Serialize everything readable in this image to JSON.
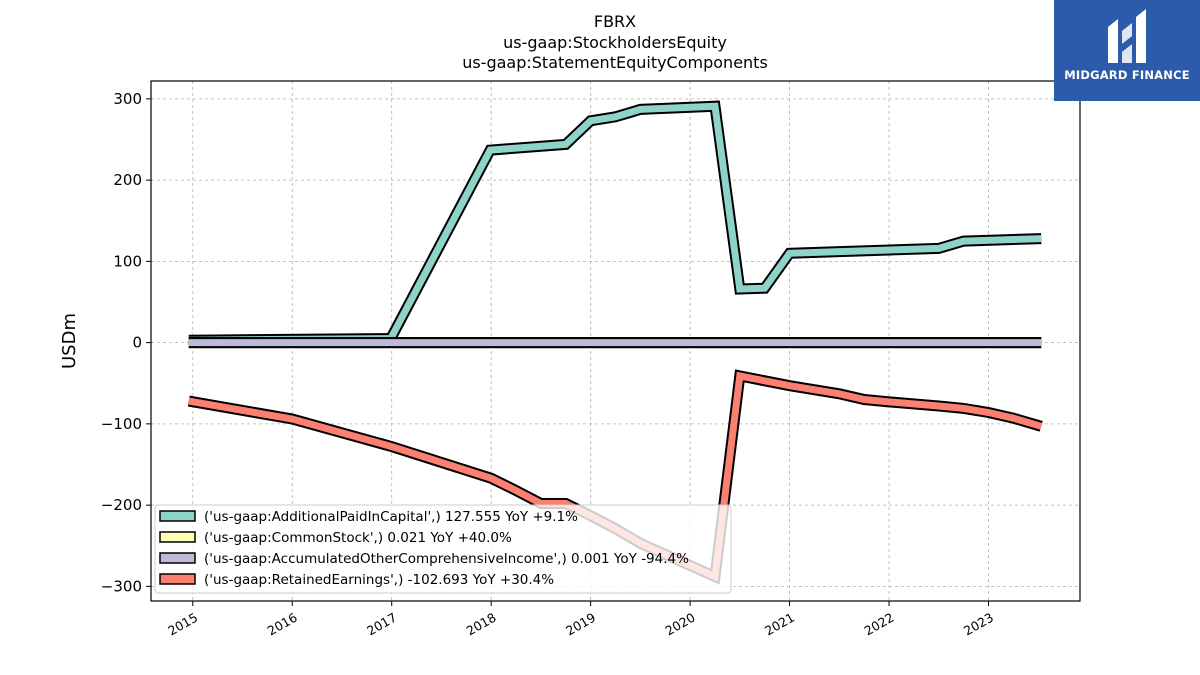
{
  "brand": {
    "logo_text": "MIDGARD FINANCE",
    "color": "#2d5bab"
  },
  "chart_data": {
    "type": "line",
    "title_lines": [
      "FBRX",
      "us-gaap:StockholdersEquity",
      "us-gaap:StatementEquityComponents"
    ],
    "xlabel": "",
    "ylabel": "USDm",
    "xlim": [
      2014.58,
      2023.92
    ],
    "ylim": [
      -318,
      322
    ],
    "x_ticks": [
      2015,
      2016,
      2017,
      2018,
      2019,
      2020,
      2021,
      2022,
      2023
    ],
    "x_tick_labels": [
      "2015",
      "2016",
      "2017",
      "2018",
      "2019",
      "2020",
      "2021",
      "2022",
      "2023"
    ],
    "y_ticks": [
      -300,
      -200,
      -100,
      0,
      100,
      200,
      300
    ],
    "y_tick_labels": [
      "−300",
      "−200",
      "−100",
      "0",
      "100",
      "200",
      "300"
    ],
    "grid": true,
    "legend_position": "lower-left",
    "series": [
      {
        "name": "('us-gaap:AdditionalPaidInCapital',) 127.555 YoY +9.1%",
        "color": "#8dd3c7",
        "x": [
          2014.96,
          2016.99,
          2017.99,
          2018.75,
          2019.0,
          2019.25,
          2019.5,
          2020.25,
          2020.5,
          2020.75,
          2021.0,
          2021.5,
          2022.5,
          2022.75,
          2023.53
        ],
        "y": [
          3,
          5,
          237,
          244,
          273,
          278,
          287,
          291,
          66,
          67,
          110,
          112,
          116,
          125,
          128
        ]
      },
      {
        "name": "('us-gaap:CommonStock',) 0.021 YoY +40.0%",
        "color": "#ffffb3",
        "x": [
          2014.96,
          2023.53
        ],
        "y": [
          0.02,
          0.02
        ]
      },
      {
        "name": "('us-gaap:AccumulatedOtherComprehensiveIncome',) 0.001 YoY -94.4%",
        "color": "#bebada",
        "x": [
          2014.96,
          2023.53
        ],
        "y": [
          0.001,
          0.001
        ]
      },
      {
        "name": "('us-gaap:RetainedEarnings',) -102.693 YoY +30.4%",
        "color": "#fb8072",
        "x": [
          2014.96,
          2016.0,
          2017.0,
          2018.0,
          2018.25,
          2018.5,
          2018.75,
          2019.0,
          2019.25,
          2019.5,
          2020.25,
          2020.5,
          2021.0,
          2021.5,
          2021.75,
          2022.0,
          2022.5,
          2022.75,
          2023.0,
          2023.25,
          2023.53
        ],
        "y": [
          -72,
          -94,
          -128,
          -167,
          -182,
          -198,
          -198,
          -213,
          -229,
          -247,
          -288,
          -41,
          -53,
          -63,
          -70,
          -73,
          -78,
          -81,
          -86,
          -93,
          -103
        ]
      }
    ]
  }
}
